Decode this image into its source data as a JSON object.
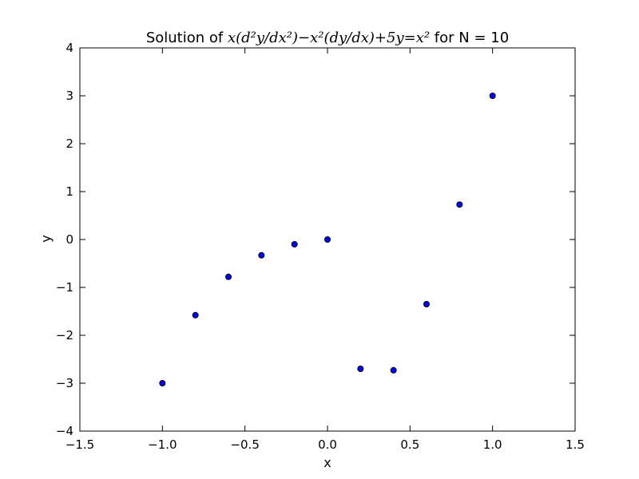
{
  "chart_data": {
    "type": "scatter",
    "title": {
      "prefix": "Solution of ",
      "equation": "x(d²y/dx²)−x²(dy/dx)+5y=x²",
      "suffix": " for N = 10"
    },
    "xlabel": "x",
    "ylabel": "y",
    "xlim": [
      -1.5,
      1.5
    ],
    "ylim": [
      -4,
      4
    ],
    "xticks": [
      -1.5,
      -1.0,
      -0.5,
      0.0,
      0.5,
      1.0,
      1.5
    ],
    "xtick_labels": [
      "−1.5",
      "−1.0",
      "−0.5",
      "0.0",
      "0.5",
      "1.0",
      "1.5"
    ],
    "yticks": [
      -4,
      -3,
      -2,
      -1,
      0,
      1,
      2,
      3,
      4
    ],
    "ytick_labels": [
      "−4",
      "−3",
      "−2",
      "−1",
      "0",
      "1",
      "2",
      "3",
      "4"
    ],
    "grid": false,
    "marker_color": "#0000ff",
    "marker_edge": "#000000",
    "series": [
      {
        "x": [
          -1.0,
          -0.8,
          -0.6,
          -0.4,
          -0.2,
          0.0,
          0.2,
          0.4,
          0.6,
          0.8,
          1.0
        ],
        "y": [
          -3.0,
          -1.58,
          -0.78,
          -0.33,
          -0.1,
          0.0,
          -2.7,
          -2.73,
          -1.35,
          0.73,
          3.0
        ]
      }
    ]
  }
}
